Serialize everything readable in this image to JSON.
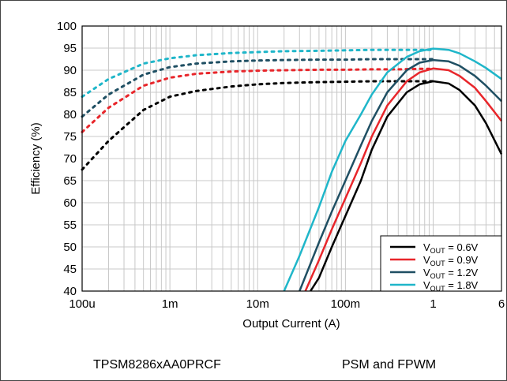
{
  "chart_data": {
    "type": "line",
    "xlabel": "Output Current (A)",
    "ylabel": "Efficiency (%)",
    "xscale": "log",
    "xlim": [
      0.0001,
      6
    ],
    "ylim": [
      40,
      100
    ],
    "yticks": [
      40,
      45,
      50,
      55,
      60,
      65,
      70,
      75,
      80,
      85,
      90,
      95,
      100
    ],
    "xtick_values": [
      0.0001,
      0.001,
      0.01,
      0.1,
      1,
      6
    ],
    "xtick_labels": [
      "100u",
      "1m",
      "10m",
      "100m",
      "1",
      "6"
    ],
    "grid": true,
    "legend_position": "bottom-right",
    "legend_unit": "V",
    "series": [
      {
        "name": "VOUT = 0.6V",
        "vout_value": "0.6",
        "color": "#000000",
        "psm": [
          [
            0.0001,
            67.5
          ],
          [
            0.0002,
            74
          ],
          [
            0.0005,
            81
          ],
          [
            0.001,
            84
          ],
          [
            0.002,
            85.3
          ],
          [
            0.005,
            86.3
          ],
          [
            0.01,
            86.8
          ],
          [
            0.02,
            87.1
          ],
          [
            0.05,
            87.3
          ],
          [
            0.1,
            87.4
          ],
          [
            0.2,
            87.5
          ],
          [
            0.4,
            87.5
          ],
          [
            0.7,
            87.5
          ],
          [
            1,
            87.5
          ]
        ],
        "fpwm": [
          [
            0.04,
            40
          ],
          [
            0.05,
            43
          ],
          [
            0.07,
            50
          ],
          [
            0.1,
            57
          ],
          [
            0.15,
            65
          ],
          [
            0.2,
            72
          ],
          [
            0.3,
            79.5
          ],
          [
            0.5,
            85
          ],
          [
            0.7,
            86.8
          ],
          [
            1,
            87.5
          ],
          [
            1.5,
            87
          ],
          [
            2,
            85.5
          ],
          [
            3,
            82
          ],
          [
            4,
            78
          ],
          [
            6,
            71
          ]
        ]
      },
      {
        "name": "VOUT = 0.9V",
        "vout_value": "0.9",
        "color": "#e8262b",
        "psm": [
          [
            0.0001,
            76
          ],
          [
            0.0002,
            81.5
          ],
          [
            0.0005,
            86.5
          ],
          [
            0.001,
            88.3
          ],
          [
            0.002,
            89.2
          ],
          [
            0.005,
            89.7
          ],
          [
            0.01,
            89.9
          ],
          [
            0.02,
            90
          ],
          [
            0.05,
            90.1
          ],
          [
            0.1,
            90.1
          ],
          [
            0.2,
            90.2
          ],
          [
            0.4,
            90.2
          ],
          [
            0.7,
            90.3
          ],
          [
            1,
            90.3
          ]
        ],
        "fpwm": [
          [
            0.035,
            40
          ],
          [
            0.05,
            47
          ],
          [
            0.07,
            54
          ],
          [
            0.1,
            61
          ],
          [
            0.15,
            69
          ],
          [
            0.2,
            75
          ],
          [
            0.3,
            82
          ],
          [
            0.5,
            87.5
          ],
          [
            0.7,
            89.5
          ],
          [
            1,
            90.4
          ],
          [
            1.5,
            90
          ],
          [
            2,
            88.7
          ],
          [
            3,
            86
          ],
          [
            4,
            83
          ],
          [
            6,
            78.5
          ]
        ]
      },
      {
        "name": "VOUT = 1.2V",
        "vout_value": "1.2",
        "color": "#1f4f63",
        "psm": [
          [
            0.0001,
            79.5
          ],
          [
            0.0002,
            84.5
          ],
          [
            0.0005,
            89
          ],
          [
            0.001,
            90.7
          ],
          [
            0.002,
            91.5
          ],
          [
            0.005,
            92
          ],
          [
            0.01,
            92.2
          ],
          [
            0.02,
            92.3
          ],
          [
            0.05,
            92.4
          ],
          [
            0.1,
            92.4
          ],
          [
            0.2,
            92.5
          ],
          [
            0.4,
            92.5
          ],
          [
            0.7,
            92.5
          ],
          [
            1,
            92.5
          ]
        ],
        "fpwm": [
          [
            0.03,
            40
          ],
          [
            0.05,
            51
          ],
          [
            0.07,
            58
          ],
          [
            0.1,
            65
          ],
          [
            0.15,
            73
          ],
          [
            0.2,
            78.5
          ],
          [
            0.3,
            85
          ],
          [
            0.5,
            90
          ],
          [
            0.7,
            91.7
          ],
          [
            1,
            92.3
          ],
          [
            1.5,
            92
          ],
          [
            2,
            91
          ],
          [
            3,
            88.7
          ],
          [
            4,
            86.5
          ],
          [
            6,
            83
          ]
        ]
      },
      {
        "name": "VOUT = 1.8V",
        "vout_value": "1.8",
        "color": "#1fb6c9",
        "psm": [
          [
            0.0001,
            84
          ],
          [
            0.0002,
            88
          ],
          [
            0.0005,
            91.5
          ],
          [
            0.001,
            92.7
          ],
          [
            0.002,
            93.4
          ],
          [
            0.005,
            93.9
          ],
          [
            0.01,
            94.1
          ],
          [
            0.02,
            94.3
          ],
          [
            0.05,
            94.4
          ],
          [
            0.1,
            94.5
          ],
          [
            0.2,
            94.6
          ],
          [
            0.4,
            94.6
          ],
          [
            0.7,
            94.6
          ],
          [
            1,
            94.6
          ]
        ],
        "fpwm": [
          [
            0.02,
            40
          ],
          [
            0.03,
            48
          ],
          [
            0.05,
            59
          ],
          [
            0.07,
            67
          ],
          [
            0.1,
            74
          ],
          [
            0.15,
            80
          ],
          [
            0.2,
            84.5
          ],
          [
            0.3,
            89.5
          ],
          [
            0.5,
            93
          ],
          [
            0.7,
            94.3
          ],
          [
            1,
            94.9
          ],
          [
            1.5,
            94.6
          ],
          [
            2,
            93.8
          ],
          [
            3,
            92
          ],
          [
            4,
            90.5
          ],
          [
            6,
            88
          ]
        ]
      }
    ]
  },
  "footer": {
    "device": "TPSM8286xAA0PRCF",
    "mode": "PSM and FPWM"
  }
}
